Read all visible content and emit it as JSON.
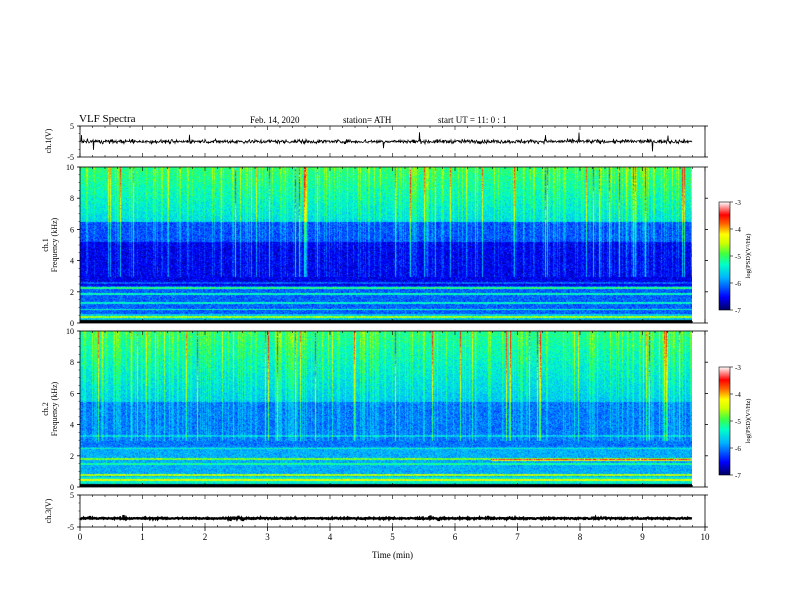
{
  "header": {
    "title": "VLF  Spectra",
    "date": "Feb. 14, 2020",
    "station": "station= ATH",
    "start": "start  UT  =    11: 0   : 1"
  },
  "colors": {
    "background": "#ffffff",
    "ink": "#000000",
    "colormap": [
      "#000080",
      "#0000ff",
      "#0060ff",
      "#00c8ff",
      "#00ffc0",
      "#40ff40",
      "#c0ff00",
      "#ffff00",
      "#ff8000",
      "#ff0000",
      "#ffffff"
    ]
  },
  "chart_data": [
    {
      "type": "line",
      "panel": "ch1_waveform",
      "ylabel": "ch.1(V)",
      "yticks": [
        "5",
        "-5"
      ],
      "ylim": [
        -5,
        5
      ],
      "description_values": {
        "mean_level": 0,
        "noise_amplitude": 0.6
      },
      "color": "#000000"
    },
    {
      "type": "heatmap",
      "panel": "ch1_spectrogram",
      "ylabel_lines": [
        "ch.1",
        "Frequency  (kHz)"
      ],
      "yticks": [
        "10",
        "8",
        "6",
        "4",
        "2",
        "0"
      ],
      "ylim": [
        0,
        10
      ],
      "colorbar": {
        "label": "log(PSD)(V²/Hz)",
        "ticks": [
          "-3",
          "-4",
          "-5",
          "-6",
          "-7"
        ],
        "range": [
          -7,
          -3
        ]
      }
    },
    {
      "type": "heatmap",
      "panel": "ch2_spectrogram",
      "ylabel_lines": [
        "ch.2",
        "Frequency  (kHz)"
      ],
      "yticks": [
        "10",
        "8",
        "6",
        "4",
        "2",
        "0"
      ],
      "ylim": [
        0,
        10
      ],
      "colorbar": {
        "label": "log(PSD)(V²/Hz)",
        "ticks": [
          "-3",
          "-4",
          "-5",
          "-6",
          "-7"
        ],
        "range": [
          -7,
          -3
        ]
      }
    },
    {
      "type": "line",
      "panel": "ch3_waveform",
      "ylabel": "ch.3(V)",
      "yticks": [
        "5",
        "-5"
      ],
      "ylim": [
        -5,
        5
      ],
      "description_values": {
        "mean_level": -2.3,
        "noise_amplitude": 0.2
      },
      "color": "#000000"
    }
  ],
  "xaxis": {
    "label": "Time  (min)",
    "ticks": [
      "0",
      "1",
      "2",
      "3",
      "4",
      "5",
      "6",
      "7",
      "8",
      "9",
      "10"
    ],
    "xlim": [
      0,
      10
    ],
    "data_end": 9.83
  }
}
